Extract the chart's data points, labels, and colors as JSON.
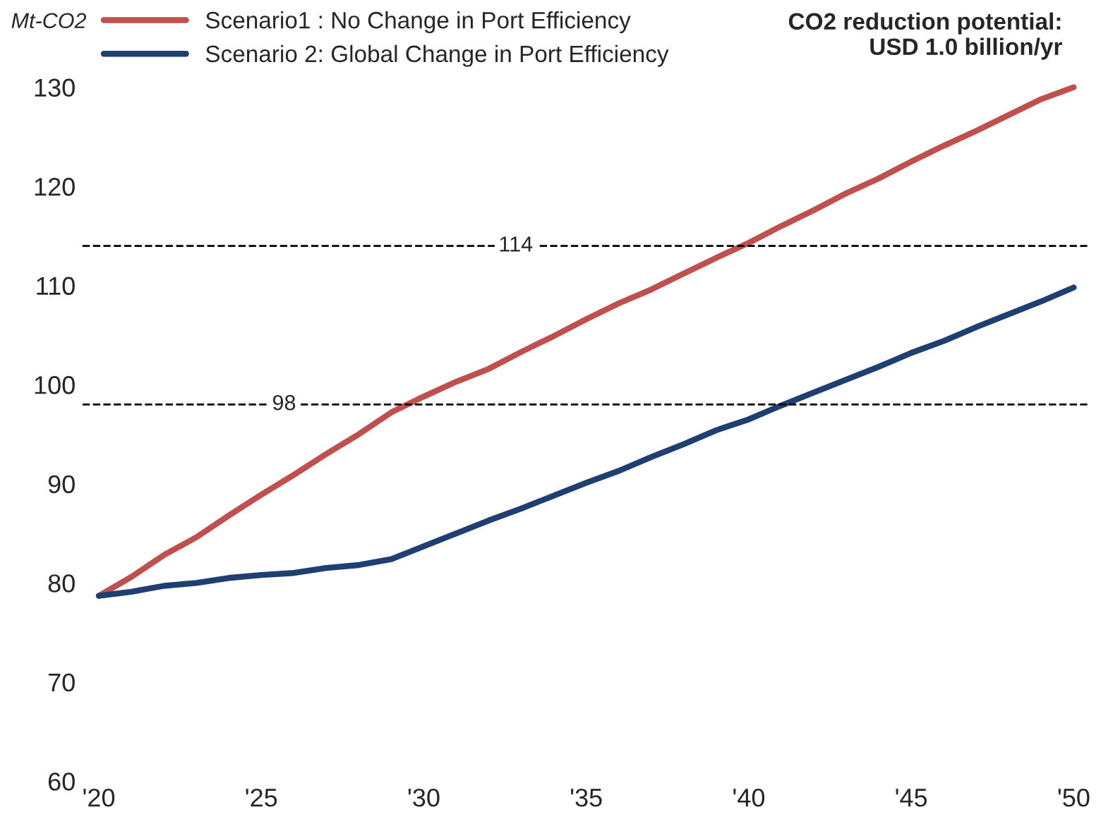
{
  "chart_data": {
    "type": "line",
    "ylabel": "Mt-CO2",
    "annotations": [
      "CO2 reduction potential:\nUSD 1.0 billion/yr"
    ],
    "x": [
      2020,
      2021,
      2022,
      2023,
      2024,
      2025,
      2026,
      2027,
      2028,
      2029,
      2030,
      2031,
      2032,
      2033,
      2034,
      2035,
      2036,
      2037,
      2038,
      2039,
      2040,
      2041,
      2042,
      2043,
      2044,
      2045,
      2046,
      2047,
      2048,
      2049,
      2050
    ],
    "series": [
      {
        "name": "Scenario1 : No Change in Port Efficiency",
        "color": "#c0504d",
        "values": [
          78.7,
          80.6,
          82.8,
          84.6,
          86.8,
          88.9,
          90.9,
          93.0,
          95.0,
          97.2,
          98.8,
          100.3,
          101.6,
          103.3,
          104.9,
          106.6,
          108.2,
          109.6,
          111.2,
          112.8,
          114.3,
          116.0,
          117.6,
          119.3,
          120.8,
          122.5,
          124.1,
          125.6,
          127.2,
          128.8,
          130.0
        ]
      },
      {
        "name": "Scenario 2: Global Change in Port Efficiency",
        "color": "#1f3f73",
        "values": [
          78.7,
          79.1,
          79.7,
          80.0,
          80.5,
          80.8,
          81.0,
          81.5,
          81.8,
          82.4,
          83.7,
          85.0,
          86.3,
          87.5,
          88.8,
          90.1,
          91.3,
          92.7,
          94.0,
          95.4,
          96.5,
          97.9,
          99.2,
          100.5,
          101.8,
          103.2,
          104.4,
          105.8,
          107.1,
          108.4,
          109.8
        ]
      }
    ],
    "ref_lines": [
      {
        "axis": "y",
        "value": 98,
        "label": "98",
        "color": "#000000",
        "line_style": "dashed"
      },
      {
        "axis": "y",
        "value": 114,
        "label": "114",
        "color": "#000000",
        "line_style": "dashed"
      }
    ],
    "xlim": [
      2019.5,
      2050.5
    ],
    "xticks": [
      {
        "value": 2020,
        "label": "'20"
      },
      {
        "value": 2025,
        "label": "'25"
      },
      {
        "value": 2030,
        "label": "'30"
      },
      {
        "value": 2035,
        "label": "'35"
      },
      {
        "value": 2040,
        "label": "'40"
      },
      {
        "value": 2045,
        "label": "'45"
      },
      {
        "value": 2050,
        "label": "'50"
      }
    ],
    "ylim": [
      60,
      130
    ],
    "yticks": [
      60,
      70,
      80,
      90,
      100,
      110,
      120,
      130
    ],
    "grid": false,
    "legend": "top left",
    "marker": "none",
    "line_style": "solid"
  }
}
